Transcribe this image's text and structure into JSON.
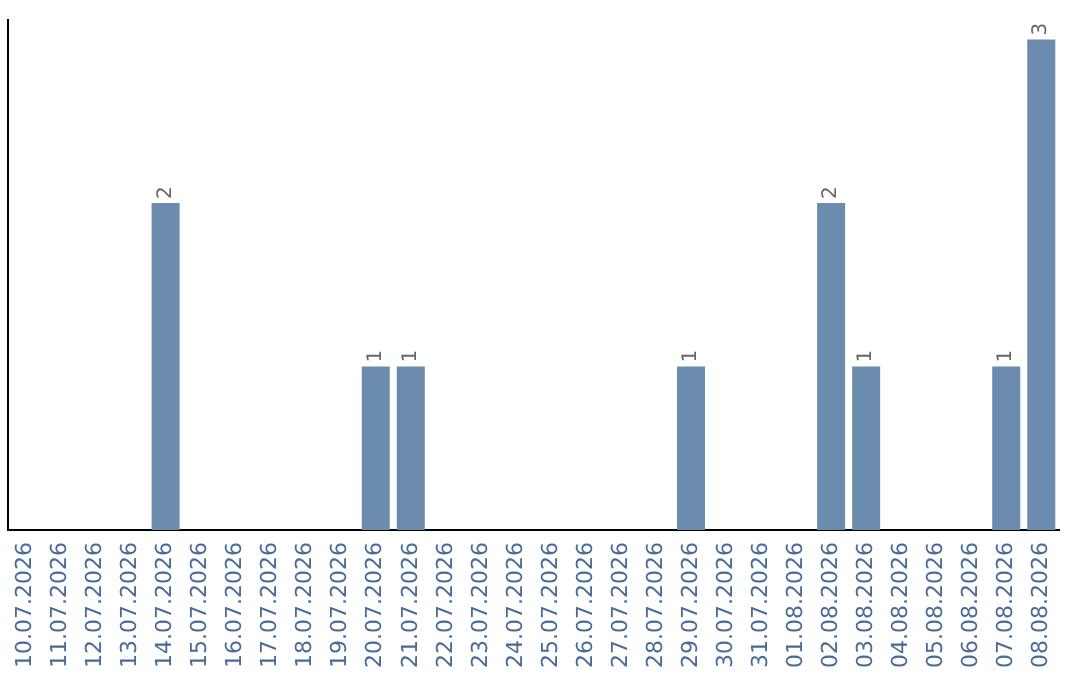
{
  "chart_data": {
    "type": "bar",
    "categories": [
      "10.07.2026",
      "11.07.2026",
      "12.07.2026",
      "13.07.2026",
      "14.07.2026",
      "15.07.2026",
      "16.07.2026",
      "17.07.2026",
      "18.07.2026",
      "19.07.2026",
      "20.07.2026",
      "21.07.2026",
      "22.07.2026",
      "23.07.2026",
      "24.07.2026",
      "25.07.2026",
      "26.07.2026",
      "27.07.2026",
      "28.07.2026",
      "29.07.2026",
      "30.07.2026",
      "31.07.2026",
      "01.08.2026",
      "02.08.2026",
      "03.08.2026",
      "04.08.2026",
      "05.08.2026",
      "06.08.2026",
      "07.08.2026",
      "08.08.2026"
    ],
    "values": [
      0,
      0,
      0,
      0,
      2,
      0,
      0,
      0,
      0,
      0,
      1,
      1,
      0,
      0,
      0,
      0,
      0,
      0,
      0,
      1,
      0,
      0,
      0,
      2,
      1,
      0,
      0,
      0,
      1,
      3
    ],
    "value_labels": [
      null,
      null,
      null,
      null,
      "2",
      null,
      null,
      null,
      null,
      null,
      "1",
      "1",
      null,
      null,
      null,
      null,
      null,
      null,
      null,
      "1",
      null,
      null,
      null,
      "2",
      "1",
      null,
      null,
      null,
      "1",
      "3"
    ],
    "color": "#6b8cae",
    "ylim": [
      0,
      3.12
    ],
    "tick_labels": "x",
    "grid": false,
    "legend": false
  }
}
